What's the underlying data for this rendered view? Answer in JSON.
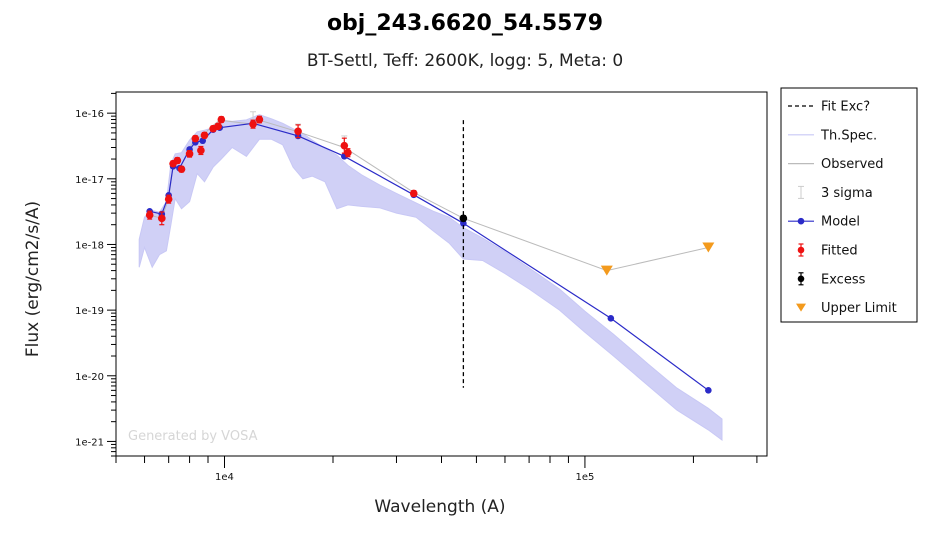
{
  "chart_data": {
    "type": "scatter",
    "title": "obj_243.6620_54.5579",
    "subtitle": "BT-Settl, Teff: 2600K, logg: 5, Meta: 0",
    "xlabel": "Wavelength (A)",
    "ylabel": "Flux (erg/cm2/s/A)",
    "xscale": "log",
    "yscale": "log",
    "xlim": [
      5000,
      320000
    ],
    "ylim": [
      6e-22,
      2.1e-16
    ],
    "x_ticks": [
      {
        "value": 10000,
        "label": "1e4"
      },
      {
        "value": 100000,
        "label": "1e5"
      }
    ],
    "y_ticks": [
      {
        "value": 1e-16,
        "label": "1e-16"
      },
      {
        "value": 1e-17,
        "label": "1e-17"
      },
      {
        "value": 1e-18,
        "label": "1e-18"
      },
      {
        "value": 1e-19,
        "label": "1e-19"
      },
      {
        "value": 1e-20,
        "label": "1e-20"
      },
      {
        "value": 1e-21,
        "label": "1e-21"
      }
    ],
    "watermark": "Generated by VOSA",
    "fit_exclusion_wavelength": 46000,
    "legend": {
      "position": "right",
      "entries": [
        {
          "label": "Fit Exc?",
          "kind": "dashed-line",
          "color": "#000000"
        },
        {
          "label": "Th.Spec.",
          "kind": "line",
          "color": "#c8c8f5"
        },
        {
          "label": "Observed",
          "kind": "line",
          "color": "#bbbbbb"
        },
        {
          "label": "3 sigma",
          "kind": "errorbar",
          "color": "#cccccc"
        },
        {
          "label": "Model",
          "kind": "line-marker",
          "color": "#2b2bc8"
        },
        {
          "label": "Fitted",
          "kind": "errorbar-marker",
          "color": "#ee1111"
        },
        {
          "label": "Excess",
          "kind": "errorbar-marker",
          "color": "#000000"
        },
        {
          "label": "Upper Limit",
          "kind": "triangle",
          "color": "#f39a1d"
        }
      ]
    },
    "series": [
      {
        "name": "Th.Spec.",
        "style": "band",
        "color": "#c8c8f5",
        "x": [
          5800,
          6000,
          6300,
          6600,
          6900,
          7100,
          7300,
          7600,
          8000,
          8400,
          8800,
          9300,
          9800,
          10500,
          11500,
          12500,
          13500,
          14500,
          15500,
          16500,
          17500,
          19000,
          20500,
          22000,
          24000,
          27000,
          30000,
          34000,
          38000,
          42000,
          46000,
          52000,
          60000,
          70000,
          85000,
          100000,
          120000,
          150000,
          180000,
          220000,
          240000
        ],
        "upper": [
          1.2e-18,
          2.6e-18,
          3.3e-18,
          3.1e-18,
          4.5e-18,
          1.7e-17,
          2.4e-17,
          2.5e-17,
          3.9e-17,
          5.2e-17,
          5.5e-17,
          6e-17,
          7.8e-17,
          7.5e-17,
          7.9e-17,
          9.5e-17,
          8.2e-17,
          7e-17,
          5.8e-17,
          4.9e-17,
          3.9e-17,
          2.9e-17,
          2.3e-17,
          1.6e-17,
          1.15e-17,
          8e-18,
          6e-18,
          4.3e-18,
          3.2e-18,
          2.6e-18,
          1.8e-18,
          1.25e-18,
          7.8e-19,
          4.4e-19,
          2.1e-19,
          9.6e-20,
          4.3e-20,
          1.5e-20,
          6.5e-21,
          3.2e-21,
          2.2e-21
        ],
        "lower": [
          4.5e-19,
          9e-19,
          4.5e-19,
          7e-19,
          8e-19,
          2e-18,
          5e-18,
          3.5e-18,
          4.5e-18,
          1.2e-17,
          9e-18,
          1.5e-17,
          2e-17,
          3e-17,
          2.2e-17,
          4e-17,
          4e-17,
          3.3e-17,
          1.5e-17,
          1e-17,
          1.1e-17,
          9e-18,
          3.5e-18,
          4e-18,
          3.8e-18,
          3.6e-18,
          3e-18,
          2.6e-18,
          1.6e-18,
          1.05e-18,
          6e-19,
          5.7e-19,
          3.6e-19,
          2.1e-19,
          1e-19,
          4.6e-20,
          2e-20,
          7e-21,
          3e-21,
          1.5e-21,
          1.05e-21
        ]
      },
      {
        "name": "Observed",
        "style": "line",
        "color": "#bbbbbb",
        "x": [
          6200,
          6700,
          7000,
          7200,
          7500,
          8000,
          8300,
          8700,
          9300,
          9700,
          12000,
          12500,
          16000,
          21500,
          33500,
          46000,
          115000,
          220000
        ],
        "y": [
          2.8e-18,
          2.5e-18,
          5e-18,
          1.6e-17,
          1.4e-17,
          3e-17,
          4e-17,
          4.6e-17,
          6.5e-17,
          7.8e-17,
          6.8e-17,
          7.8e-17,
          5.2e-17,
          3e-17,
          6.2e-18,
          2.5e-18,
          4e-19,
          9e-19
        ]
      },
      {
        "name": "Model",
        "style": "line-marker",
        "color": "#2b2bc8",
        "x": [
          6200,
          6700,
          7000,
          7200,
          7500,
          8000,
          8300,
          8700,
          9300,
          9700,
          12000,
          16000,
          21500,
          33500,
          46000,
          118000,
          220000
        ],
        "y": [
          3.2e-18,
          2.9e-18,
          5.6e-18,
          1.55e-17,
          1.45e-17,
          2.8e-17,
          3.6e-17,
          3.8e-17,
          5.6e-17,
          6e-17,
          7e-17,
          4.5e-17,
          2.2e-17,
          5.7e-18,
          2.1e-18,
          7.5e-20,
          6e-21
        ]
      },
      {
        "name": "Fitted",
        "style": "errorbar-marker",
        "color": "#ee1111",
        "x": [
          6200,
          6700,
          7000,
          7200,
          7400,
          7600,
          8000,
          8300,
          8600,
          8800,
          9300,
          9600,
          9800,
          12000,
          12500,
          16000,
          21500,
          22000,
          33500
        ],
        "y": [
          2.8e-18,
          2.5e-18,
          4.9e-18,
          1.7e-17,
          1.9e-17,
          1.4e-17,
          2.4e-17,
          4.1e-17,
          2.7e-17,
          4.6e-17,
          5.8e-17,
          6.3e-17,
          8e-17,
          6.8e-17,
          8e-17,
          5.3e-17,
          3.2e-17,
          2.5e-17,
          6e-18
        ],
        "yerr_factor": [
          1.15,
          1.25,
          1.15,
          1.1,
          1.1,
          1.1,
          1.12,
          1.1,
          1.15,
          1.1,
          1.1,
          1.1,
          1.1,
          1.15,
          1.12,
          1.25,
          1.3,
          1.15,
          1.1
        ]
      },
      {
        "name": "Excess",
        "style": "errorbar-marker",
        "color": "#000000",
        "x": [
          46000
        ],
        "y": [
          2.5e-18
        ],
        "yerr_factor": [
          1.1
        ]
      },
      {
        "name": "Upper Limit",
        "style": "triangle",
        "color": "#f39a1d",
        "x": [
          115000,
          220000
        ],
        "y": [
          4e-19,
          9e-19
        ]
      },
      {
        "name": "3 sigma",
        "style": "errorbar",
        "color": "#cccccc",
        "x": [
          12000,
          16000,
          21500
        ],
        "y": [
          1.05e-16,
          6.8e-17,
          4.5e-17
        ]
      }
    ]
  }
}
